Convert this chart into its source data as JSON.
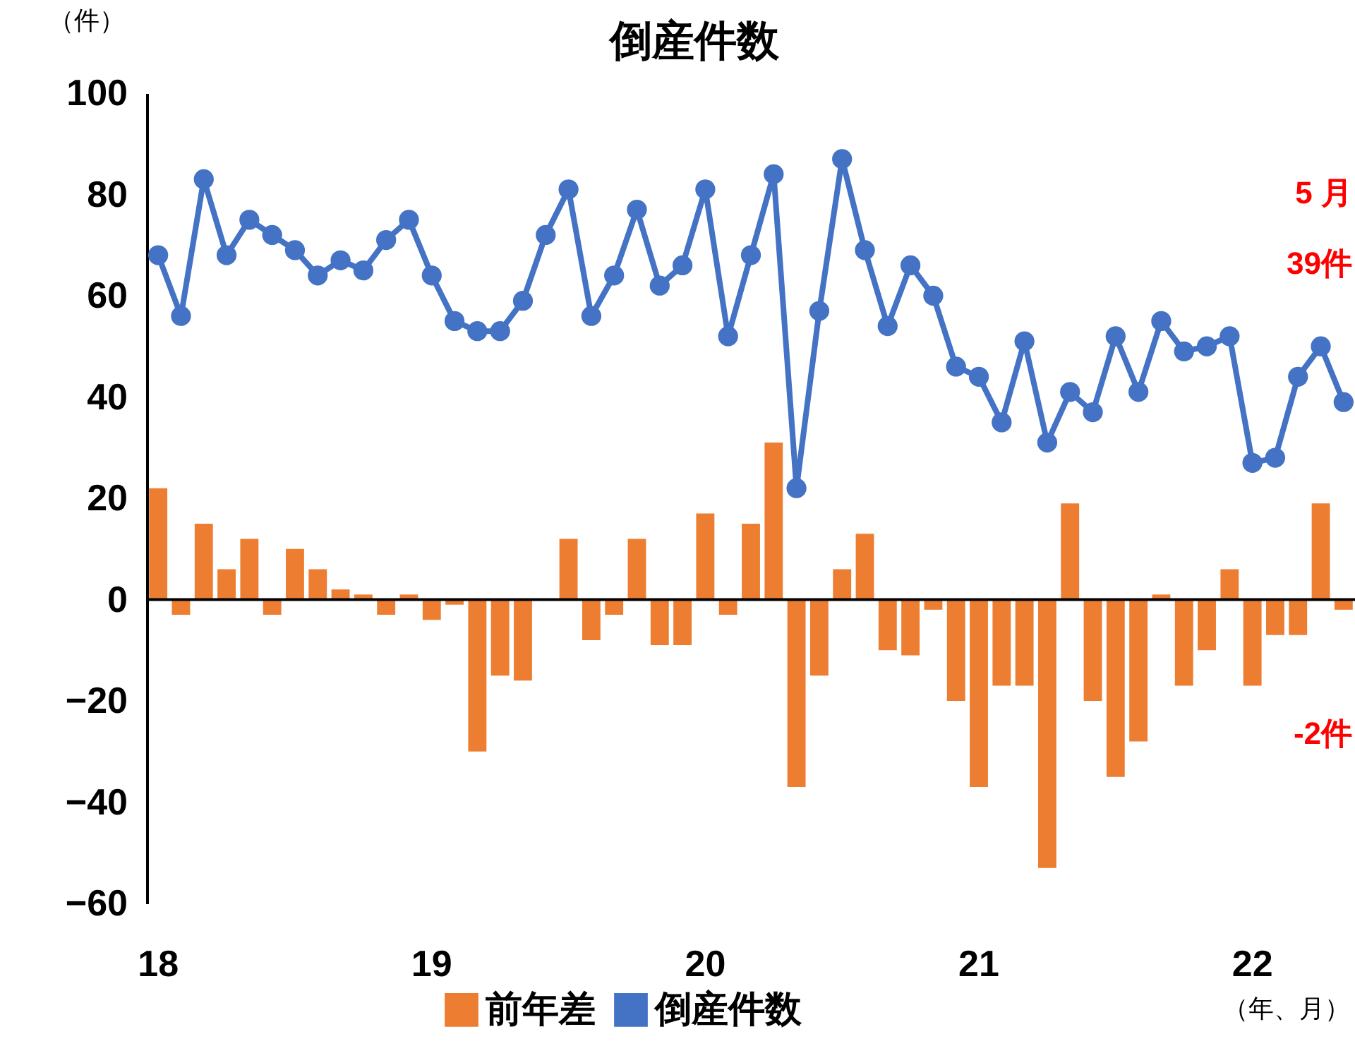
{
  "chart_data": {
    "type": "bar",
    "title": "倒産件数",
    "ylabel": "（件）",
    "xlabel": "（年、月）",
    "categories": [
      "18",
      null,
      null,
      null,
      null,
      null,
      null,
      null,
      null,
      null,
      null,
      null,
      "19",
      null,
      null,
      null,
      null,
      null,
      null,
      null,
      null,
      null,
      null,
      null,
      "20",
      null,
      null,
      null,
      null,
      null,
      null,
      null,
      null,
      null,
      null,
      null,
      "21",
      null,
      null,
      null,
      null,
      null,
      null,
      null,
      null,
      null,
      null,
      null,
      "22",
      null,
      null,
      null,
      null
    ],
    "series": [
      {
        "name": "前年差",
        "type": "bar",
        "color": "#ed7d31",
        "values": [
          22,
          -3,
          15,
          6,
          12,
          -3,
          10,
          6,
          2,
          1,
          -3,
          1,
          -4,
          -1,
          -30,
          -15,
          -16,
          0,
          12,
          -8,
          -3,
          12,
          -9,
          -9,
          17,
          -3,
          15,
          31,
          -37,
          -15,
          6,
          13,
          -10,
          -11,
          -2,
          -20,
          -37,
          -17,
          -17,
          -53,
          19,
          -20,
          -35,
          -28,
          1,
          -17,
          -10,
          6,
          -17,
          -7,
          -7,
          19,
          -2
        ]
      },
      {
        "name": "倒産件数",
        "type": "line",
        "color": "#4472c4",
        "marker": "circle",
        "values": [
          68,
          56,
          83,
          68,
          75,
          72,
          69,
          64,
          67,
          65,
          71,
          75,
          64,
          55,
          53,
          53,
          59,
          72,
          81,
          56,
          64,
          77,
          62,
          66,
          81,
          52,
          68,
          84,
          22,
          57,
          87,
          69,
          54,
          66,
          60,
          46,
          44,
          35,
          51,
          31,
          41,
          37,
          52,
          41,
          55,
          49,
          50,
          52,
          27,
          28,
          44,
          50,
          39
        ]
      }
    ],
    "ylim": [
      -60,
      100
    ],
    "yticks": [
      -60,
      -40,
      -20,
      0,
      20,
      40,
      60,
      80,
      100
    ],
    "ref_lines": [
      {
        "axis": "y",
        "value": 0,
        "color": "#000000"
      }
    ],
    "annotations": [
      "5 月",
      "39件",
      "-2件"
    ],
    "legend": "bottom"
  }
}
